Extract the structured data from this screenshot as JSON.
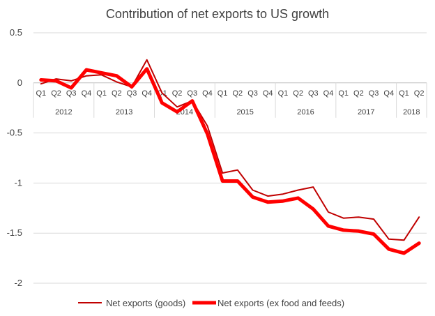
{
  "chart_data": {
    "type": "line",
    "title": "Contribution of net exports to US growth",
    "xlabel": "",
    "ylabel": "",
    "ylim": [
      -2,
      0.5
    ],
    "yticks": [
      "0.5",
      "0",
      "-0.5",
      "-1",
      "-1.5",
      "-2"
    ],
    "ytick_values": [
      0.5,
      0,
      -0.5,
      -1,
      -1.5,
      -2
    ],
    "grid": "horizontal",
    "legend_position": "bottom",
    "categories": [
      "Q1",
      "Q2",
      "Q3",
      "Q4",
      "Q1",
      "Q2",
      "Q3",
      "Q4",
      "Q1",
      "Q2",
      "Q3",
      "Q4",
      "Q1",
      "Q2",
      "Q3",
      "Q4",
      "Q1",
      "Q2",
      "Q3",
      "Q4",
      "Q1",
      "Q2",
      "Q3",
      "Q4",
      "Q1",
      "Q2"
    ],
    "year_groups": [
      {
        "label": "2012",
        "count": 4
      },
      {
        "label": "2013",
        "count": 4
      },
      {
        "label": "2014",
        "count": 4
      },
      {
        "label": "2015",
        "count": 4
      },
      {
        "label": "2016",
        "count": 4
      },
      {
        "label": "2017",
        "count": 4
      },
      {
        "label": "2018",
        "count": 2
      }
    ],
    "series": [
      {
        "name": "Net exports (goods)",
        "color": "#c00000",
        "values": [
          -0.01,
          0.04,
          0.02,
          0.07,
          0.08,
          0.01,
          -0.04,
          0.23,
          -0.1,
          -0.24,
          -0.18,
          -0.43,
          -0.9,
          -0.87,
          -1.07,
          -1.13,
          -1.11,
          -1.07,
          -1.04,
          -1.29,
          -1.35,
          -1.34,
          -1.36,
          -1.56,
          -1.57,
          -1.34
        ]
      },
      {
        "name": "Net exports (ex food and feeds)",
        "color": "#ff0000",
        "values": [
          0.03,
          0.02,
          -0.05,
          0.13,
          0.1,
          0.07,
          -0.04,
          0.14,
          -0.2,
          -0.29,
          -0.18,
          -0.51,
          -0.98,
          -0.98,
          -1.14,
          -1.19,
          -1.18,
          -1.15,
          -1.26,
          -1.43,
          -1.47,
          -1.48,
          -1.51,
          -1.66,
          -1.7,
          -1.6
        ]
      }
    ]
  }
}
